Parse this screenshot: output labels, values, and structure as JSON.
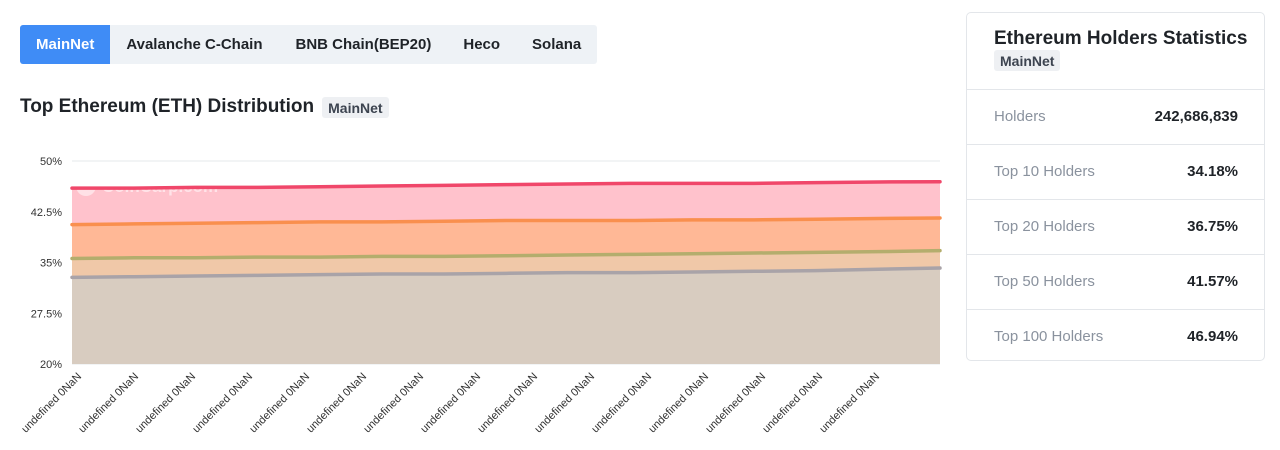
{
  "tabs": [
    {
      "label": "MainNet",
      "active": true
    },
    {
      "label": "Avalanche C-Chain",
      "active": false
    },
    {
      "label": "BNB Chain(BEP20)",
      "active": false
    },
    {
      "label": "Heco",
      "active": false
    },
    {
      "label": "Solana",
      "active": false
    }
  ],
  "section": {
    "title": "Top Ethereum (ETH) Distribution",
    "badge": "MainNet"
  },
  "watermark": "CoinCarp.com",
  "stats_panel": {
    "title": "Ethereum Holders Statistics",
    "badge": "MainNet",
    "rows": [
      {
        "label": "Holders",
        "value": "242,686,839"
      },
      {
        "label": "Top 10 Holders",
        "value": "34.18%"
      },
      {
        "label": "Top 20 Holders",
        "value": "36.75%"
      },
      {
        "label": "Top 50 Holders",
        "value": "41.57%"
      },
      {
        "label": "Top 100 Holders",
        "value": "46.94%"
      }
    ]
  },
  "chart_data": {
    "type": "area",
    "x": [
      "undefined 0NaN",
      "undefined 0NaN",
      "undefined 0NaN",
      "undefined 0NaN",
      "undefined 0NaN",
      "undefined 0NaN",
      "undefined 0NaN",
      "undefined 0NaN",
      "undefined 0NaN",
      "undefined 0NaN",
      "undefined 0NaN",
      "undefined 0NaN",
      "undefined 0NaN",
      "undefined 0NaN",
      "undefined 0NaN"
    ],
    "ylim": [
      20,
      50
    ],
    "yticks": [
      "50%",
      "42.5%",
      "35%",
      "27.5%",
      "20%"
    ],
    "ytick_values": [
      50,
      42.5,
      35,
      27.5,
      20
    ],
    "grid": true,
    "series": [
      {
        "values": [
          46.0,
          46.0,
          46.1,
          46.1,
          46.2,
          46.3,
          46.4,
          46.5,
          46.6,
          46.7,
          46.7,
          46.7,
          46.8,
          46.9,
          46.94
        ],
        "color": "#f0476a",
        "fill": "#ffc2cc"
      },
      {
        "values": [
          40.6,
          40.7,
          40.8,
          40.9,
          41.0,
          41.0,
          41.1,
          41.2,
          41.2,
          41.2,
          41.3,
          41.3,
          41.4,
          41.5,
          41.57
        ],
        "color": "#f98f4e",
        "fill": "#ffb896"
      },
      {
        "values": [
          35.6,
          35.7,
          35.7,
          35.8,
          35.8,
          35.9,
          35.9,
          36.0,
          36.1,
          36.2,
          36.3,
          36.4,
          36.5,
          36.6,
          36.75
        ],
        "color": "#b4ad6d",
        "fill": "#f0c8a8"
      },
      {
        "values": [
          32.8,
          32.9,
          33.0,
          33.1,
          33.2,
          33.3,
          33.3,
          33.4,
          33.5,
          33.5,
          33.6,
          33.7,
          33.8,
          34.0,
          34.18
        ],
        "color": "#a9a3a8",
        "fill": "#d8ccc0"
      }
    ]
  }
}
